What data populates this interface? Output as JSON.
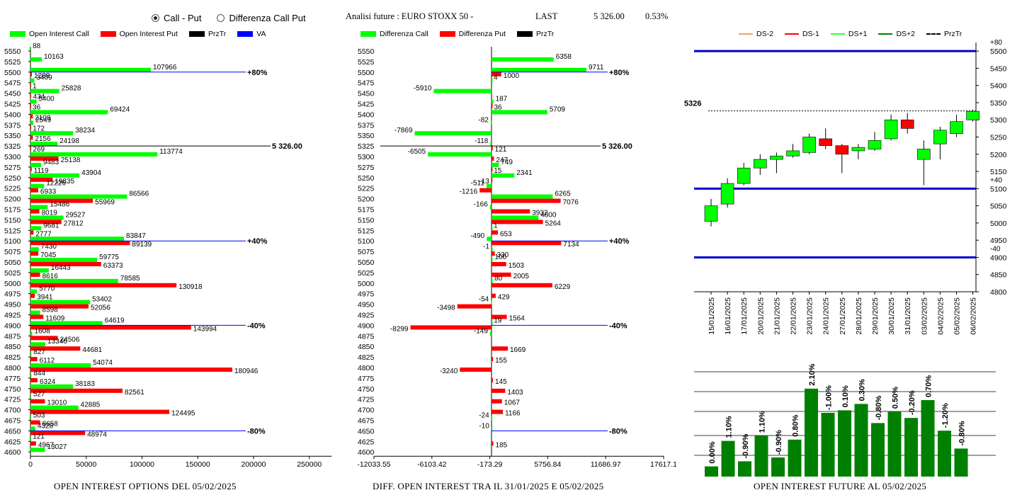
{
  "header": {
    "radio_call_put": "Call - Put",
    "radio_diff": "Differenza Call Put",
    "analysis_title": "Analisi future : EURO STOXX 50 -",
    "last_label": "LAST",
    "last_value": "5 326.00",
    "last_change": "0.53%"
  },
  "legend_left": [
    {
      "label": "Open Interest Call",
      "color": "#00ff00"
    },
    {
      "label": "Open Interest Put",
      "color": "#ff0000"
    },
    {
      "label": "PrzTr",
      "color": "#000000"
    },
    {
      "label": "VA",
      "color": "#0000ff"
    }
  ],
  "legend_mid": [
    {
      "label": "Differenza Call",
      "color": "#00ff00"
    },
    {
      "label": "Differenza Put",
      "color": "#ff0000"
    },
    {
      "label": "PrzTr",
      "color": "#000000"
    }
  ],
  "legend_right": [
    {
      "label": "DS-2",
      "color": "#f4a460",
      "style": "solid"
    },
    {
      "label": "DS-1",
      "color": "#ff0000",
      "style": "solid"
    },
    {
      "label": "DS+1",
      "color": "#33ff33",
      "style": "solid"
    },
    {
      "label": "DS+2",
      "color": "#008000",
      "style": "solid"
    },
    {
      "label": "PrzTr",
      "color": "#000000",
      "style": "dashed"
    }
  ],
  "captions": {
    "left": "OPEN INTEREST OPTIONS DEL 05/02/2025",
    "mid": "DIFF. OPEN INTEREST TRA IL 31/01/2025 E 05/02/2025",
    "right": "OPEN INTEREST FUTURE AL 05/02/2025"
  },
  "chart_data": [
    {
      "type": "bar",
      "orientation": "horizontal",
      "strikes": [
        5550,
        5525,
        5500,
        5475,
        5450,
        5425,
        5400,
        5375,
        5350,
        5325,
        5300,
        5275,
        5250,
        5225,
        5200,
        5175,
        5150,
        5125,
        5100,
        5075,
        5050,
        5025,
        5000,
        4975,
        4950,
        4925,
        4900,
        4875,
        4850,
        4825,
        4800,
        4775,
        4750,
        4725,
        4700,
        4675,
        4650,
        4625,
        4600
      ],
      "series": [
        {
          "name": "Open Interest Call",
          "color": "#00ff00",
          "values": [
            88,
            10163,
            107966,
            3409,
            25828,
            5400,
            69424,
            2549,
            38234,
            24198,
            113774,
            9483,
            43904,
            12226,
            86566,
            15486,
            29527,
            9681,
            83847,
            7430,
            59775,
            16443,
            78585,
            5770,
            53402,
            8598,
            64619,
            1608,
            13346,
            827,
            54074,
            844,
            38183,
            527,
            42885,
            503,
            4328,
            121,
            13027
          ]
        },
        {
          "name": "Open Interest Put",
          "color": "#ff0000",
          "values": [
            0,
            0,
            1288,
            1,
            434,
            36,
            2109,
            172,
            2156,
            269,
            25138,
            1119,
            19835,
            6933,
            55969,
            8019,
            27812,
            2777,
            89139,
            7045,
            63373,
            8616,
            130918,
            3941,
            52056,
            11609,
            143994,
            24506,
            44681,
            6112,
            180946,
            6324,
            82561,
            13010,
            124495,
            8658,
            48974,
            4967,
            0
          ]
        }
      ],
      "reference_lines": [
        {
          "label": "5 326.00",
          "at": 5325,
          "color": "#000000"
        },
        {
          "label": "+80%",
          "at": 5500,
          "color": "#0000ff"
        },
        {
          "label": "+40%",
          "at": 5100,
          "color": "#0000ff"
        },
        {
          "label": "-40%",
          "at": 4900,
          "color": "#0000ff"
        },
        {
          "label": "-80%",
          "at": 4650,
          "color": "#0000ff"
        }
      ],
      "xaxis": {
        "ticks": [
          0,
          50000,
          100000,
          150000,
          200000,
          250000
        ],
        "range": [
          0,
          270000
        ]
      }
    },
    {
      "type": "bar",
      "orientation": "horizontal",
      "strikes": [
        5550,
        5525,
        5500,
        5475,
        5450,
        5425,
        5400,
        5375,
        5350,
        5325,
        5300,
        5275,
        5250,
        5225,
        5200,
        5175,
        5150,
        5125,
        5100,
        5075,
        5050,
        5025,
        5000,
        4975,
        4950,
        4925,
        4900,
        4875,
        4850,
        4825,
        4800,
        4775,
        4750,
        4725,
        4700,
        4675,
        4650,
        4625,
        4600
      ],
      "series": [
        {
          "name": "Differenza Call",
          "color": "#00ff00",
          "values": [
            null,
            6358,
            9711,
            4,
            -5910,
            187,
            5709,
            -82,
            -7869,
            -118,
            -6505,
            749,
            2341,
            -511,
            6265,
            -166,
            4800,
            1,
            -490,
            -1,
            100,
            null,
            80,
            null,
            -54,
            null,
            19,
            -149,
            null,
            null,
            null,
            null,
            null,
            null,
            null,
            -24,
            -10,
            null,
            null
          ]
        },
        {
          "name": "Differenza Put",
          "color": "#ff0000",
          "values": [
            null,
            null,
            1000,
            null,
            null,
            36,
            null,
            null,
            null,
            121,
            247,
            15,
            -13,
            -1216,
            7076,
            3932,
            5264,
            653,
            7134,
            330,
            1503,
            2005,
            6229,
            429,
            -3498,
            1564,
            -8299,
            null,
            1669,
            155,
            -3240,
            145,
            1403,
            1067,
            1166,
            null,
            null,
            185,
            null
          ]
        }
      ],
      "reference_lines": [
        {
          "label": "5 326.00",
          "at": 5325,
          "color": "#000000"
        },
        {
          "label": "+80%",
          "at": 5500,
          "color": "#0000ff"
        },
        {
          "label": "+40%",
          "at": 5100,
          "color": "#0000ff"
        },
        {
          "label": "-40%",
          "at": 4900,
          "color": "#0000ff"
        },
        {
          "label": "-80%",
          "at": 4650,
          "color": "#0000ff"
        }
      ],
      "xaxis": {
        "tick_labels": [
          "-12033.55",
          "-6103.42",
          "-173.29",
          "5756.84",
          "11686.97",
          "17617.1"
        ],
        "ticks": [
          -12033.55,
          -6103.42,
          -173.29,
          5756.84,
          11686.97,
          17617.1
        ],
        "range": [
          -12033.55,
          17617.1
        ]
      }
    },
    {
      "type": "candlestick",
      "dates": [
        "15/01/2025",
        "16/01/2025",
        "17/01/2025",
        "20/01/2025",
        "21/01/2025",
        "22/01/2025",
        "23/01/2025",
        "24/01/2025",
        "27/01/2025",
        "28/01/2025",
        "29/01/2025",
        "30/01/2025",
        "31/01/2025",
        "03/02/2025",
        "04/02/2025",
        "05/02/2025",
        "06/02/2025"
      ],
      "candles": [
        {
          "o": 5005,
          "h": 5070,
          "l": 4990,
          "c": 5050
        },
        {
          "o": 5055,
          "h": 5130,
          "l": 5045,
          "c": 5115
        },
        {
          "o": 5115,
          "h": 5175,
          "l": 5110,
          "c": 5160
        },
        {
          "o": 5160,
          "h": 5200,
          "l": 5140,
          "c": 5185
        },
        {
          "o": 5185,
          "h": 5205,
          "l": 5145,
          "c": 5195
        },
        {
          "o": 5195,
          "h": 5230,
          "l": 5190,
          "c": 5210
        },
        {
          "o": 5205,
          "h": 5260,
          "l": 5200,
          "c": 5250
        },
        {
          "o": 5245,
          "h": 5275,
          "l": 5215,
          "c": 5225
        },
        {
          "o": 5225,
          "h": 5230,
          "l": 5145,
          "c": 5200
        },
        {
          "o": 5210,
          "h": 5230,
          "l": 5185,
          "c": 5220
        },
        {
          "o": 5215,
          "h": 5265,
          "l": 5210,
          "c": 5240
        },
        {
          "o": 5245,
          "h": 5315,
          "l": 5240,
          "c": 5300
        },
        {
          "o": 5300,
          "h": 5320,
          "l": 5260,
          "c": 5275
        },
        {
          "o": 5185,
          "h": 5240,
          "l": 5110,
          "c": 5215
        },
        {
          "o": 5230,
          "h": 5280,
          "l": 5185,
          "c": 5270
        },
        {
          "o": 5260,
          "h": 5315,
          "l": 5250,
          "c": 5295
        },
        {
          "o": 5300,
          "h": 5330,
          "l": 5295,
          "c": 5325
        }
      ],
      "bull_color": "#00ff00",
      "bear_color": "#ff0000",
      "yaxis": {
        "ticks": [
          4800,
          4850,
          4900,
          4950,
          5000,
          5050,
          5100,
          5150,
          5200,
          5250,
          5300,
          5350,
          5400,
          5450,
          5500
        ],
        "range": [
          4800,
          5525
        ]
      },
      "last_price_label": "5326",
      "last_price": 5326,
      "bands": [
        {
          "label": "+80",
          "value": 5500
        },
        {
          "label": "+40",
          "value": 5100
        },
        {
          "label": "-40",
          "value": 4900
        }
      ]
    },
    {
      "type": "bar",
      "values": [
        0.0,
        1.1,
        -0.9,
        1.1,
        -0.9,
        0.8,
        2.1,
        -1.0,
        0.1,
        0.3,
        -0.8,
        0.5,
        -0.2,
        0.7,
        -1.2,
        -0.8
      ],
      "labels": [
        "0.00%",
        "1.10%",
        "-0.90%",
        "1.10%",
        "-0.90%",
        "0.80%",
        "2.10%",
        "-1.00%",
        "0.10%",
        "0.30%",
        "-0.80%",
        "0.50%",
        "-0.20%",
        "0.70%",
        "-1.20%",
        "-0.80%"
      ],
      "heights": [
        8,
        28,
        12,
        32,
        15,
        29,
        69,
        50,
        52,
        57,
        42,
        51,
        46,
        60,
        36,
        22
      ],
      "color": "#008000"
    }
  ]
}
